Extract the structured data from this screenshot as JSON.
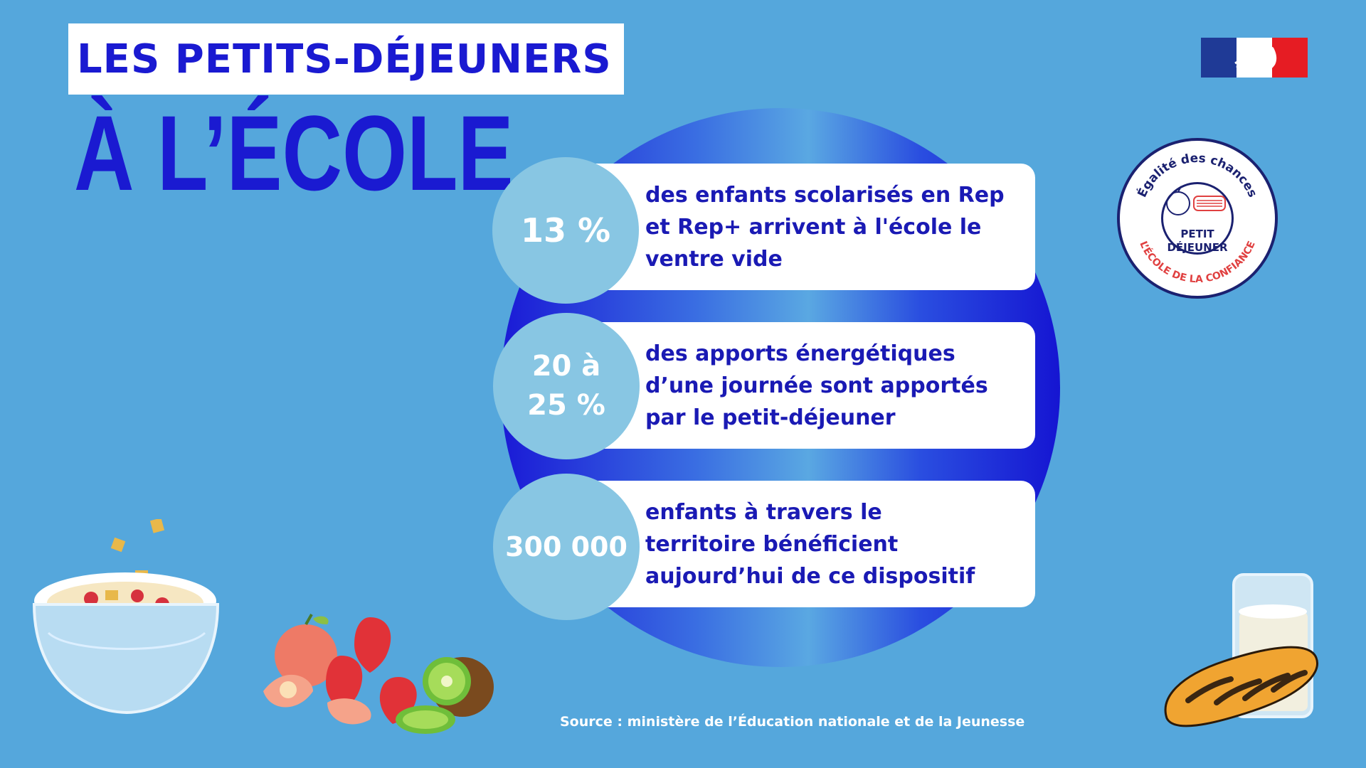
{
  "header": {
    "title_line1": "LES PETITS-DÉJEUNERS",
    "title_line2": "À L’ÉCOLE"
  },
  "badge": {
    "top_text": "Égalité des chances",
    "center_text": "PETIT\nDÉJEUNER",
    "bottom_text": "L’ÉCOLE DE LA CONFIANCE"
  },
  "stats": [
    {
      "value": "13 %",
      "text": "des enfants scolarisés en Rep\net Rep+ arrivent à l'école le\nventre vide"
    },
    {
      "value": "20 à\n25 %",
      "text": "des apports énergétiques\nd’une journée sont apportés\npar le petit-déjeuner"
    },
    {
      "value": "300 000",
      "text": "enfants à travers le\nterritoire bénéficient\naujourd’hui de ce dispositif"
    }
  ],
  "footer": {
    "source": "Source : ministère de l’Éducation nationale et de la Jeunesse"
  },
  "colors": {
    "background": "#55a7dc",
    "accent_blue": "#1a1ad1",
    "bubble": "#88c6e3",
    "flag_blue": "#1f3a96",
    "flag_red": "#e61c23"
  },
  "icons": [
    "marianne-flag-logo",
    "badge-apple-icon",
    "cereal-bowl-illustration",
    "fruits-illustration",
    "milk-bread-illustration"
  ]
}
